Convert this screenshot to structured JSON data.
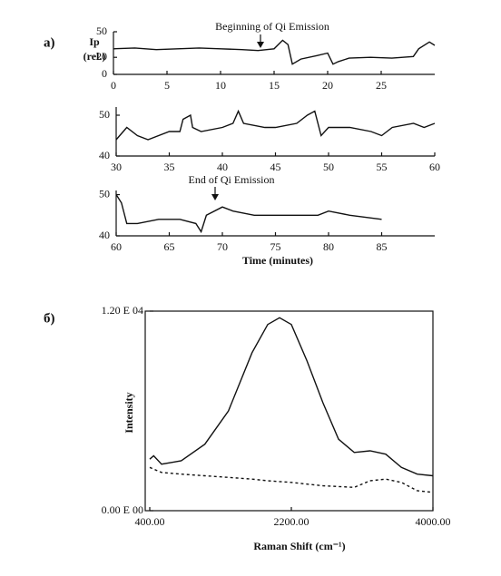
{
  "panel_labels": [
    "a)",
    "б)"
  ],
  "chart_data": [
    {
      "type": "line",
      "ylabel": [
        "Ip",
        "(rel.)"
      ],
      "annotation": "Beginning of Qi Emission",
      "x": [
        0,
        2,
        4,
        6,
        8,
        10,
        12,
        13.5,
        15,
        15.8,
        16.3,
        16.7,
        17.5,
        19,
        20,
        20.5,
        21,
        22,
        24,
        26,
        28,
        28.5,
        29.5,
        30
      ],
      "series": [
        {
          "color": "#111111",
          "values": [
            30,
            31,
            29,
            30,
            31,
            30,
            29,
            28,
            30,
            40,
            35,
            12,
            18,
            22,
            25,
            12,
            15,
            19,
            20,
            19,
            21,
            30,
            38,
            34
          ]
        }
      ],
      "xlim": [
        0,
        30
      ],
      "xticks": [
        0,
        5,
        10,
        15,
        20,
        25
      ],
      "ylim": [
        0,
        50
      ],
      "yticks": [
        0,
        20,
        50
      ]
    },
    {
      "type": "line",
      "x": [
        30,
        31,
        32,
        33,
        35,
        36,
        36.3,
        37,
        37.2,
        38,
        40,
        41,
        41.5,
        42,
        44,
        45,
        47,
        48,
        48.7,
        49.3,
        50,
        52,
        54,
        55,
        56,
        58,
        59,
        60
      ],
      "series": [
        {
          "color": "#111111",
          "values": [
            44,
            47,
            45,
            44,
            46,
            46,
            49,
            50,
            47,
            46,
            47,
            48,
            51,
            48,
            47,
            47,
            48,
            50,
            51,
            45,
            47,
            47,
            46,
            45,
            47,
            48,
            47,
            48
          ]
        }
      ],
      "xlim": [
        30,
        60
      ],
      "xticks": [
        30,
        35,
        40,
        45,
        50,
        55,
        60
      ],
      "ylim": [
        40,
        52
      ],
      "yticks": [
        40,
        50
      ]
    },
    {
      "type": "line",
      "annotation": "End of Qi Emission",
      "xlabel": "Time (minutes)",
      "x": [
        60,
        60.5,
        61,
        62,
        64,
        66,
        67.5,
        68,
        68.5,
        70,
        71,
        73,
        76,
        79,
        80,
        82,
        85
      ],
      "series": [
        {
          "color": "#111111",
          "values": [
            50,
            48,
            43,
            43,
            44,
            44,
            43,
            41,
            45,
            47,
            46,
            45,
            45,
            45,
            46,
            45,
            44
          ]
        }
      ],
      "xlim": [
        60,
        90
      ],
      "xticks": [
        60,
        65,
        70,
        75,
        80,
        85
      ],
      "ylim": [
        40,
        51
      ],
      "yticks": [
        40,
        50
      ]
    },
    {
      "type": "line",
      "frame": true,
      "xlabel": "Raman Shift  (cm⁻¹)",
      "ylabel": [
        "Intensity"
      ],
      "x": [
        400,
        450,
        550,
        800,
        1100,
        1400,
        1700,
        1900,
        2050,
        2200,
        2400,
        2600,
        2800,
        3000,
        3200,
        3400,
        3600,
        3800,
        4000
      ],
      "series": [
        {
          "color": "#111111",
          "values": [
            3100,
            3300,
            2800,
            3000,
            4000,
            6000,
            9500,
            11200,
            11600,
            11200,
            9000,
            6500,
            4300,
            3500,
            3600,
            3400,
            2600,
            2200,
            2100
          ]
        },
        {
          "color": "#111111",
          "dash": true,
          "values": [
            2600,
            2500,
            2300,
            2200,
            2100,
            2000,
            1900,
            1800,
            1750,
            1700,
            1600,
            1500,
            1450,
            1400,
            1800,
            1900,
            1700,
            1200,
            1100
          ]
        }
      ],
      "xlim": [
        400,
        4000
      ],
      "xticks": [
        {
          "value": 400,
          "label": "400.00"
        },
        {
          "value": 2200,
          "label": "2200.00"
        },
        {
          "value": 4000,
          "label": "4000.00"
        }
      ],
      "ylim": [
        0,
        12000
      ],
      "yticks": [
        {
          "value": 0,
          "label": "0.00 E 00"
        },
        {
          "value": 12000,
          "label": "1.20 E 04"
        }
      ]
    }
  ]
}
